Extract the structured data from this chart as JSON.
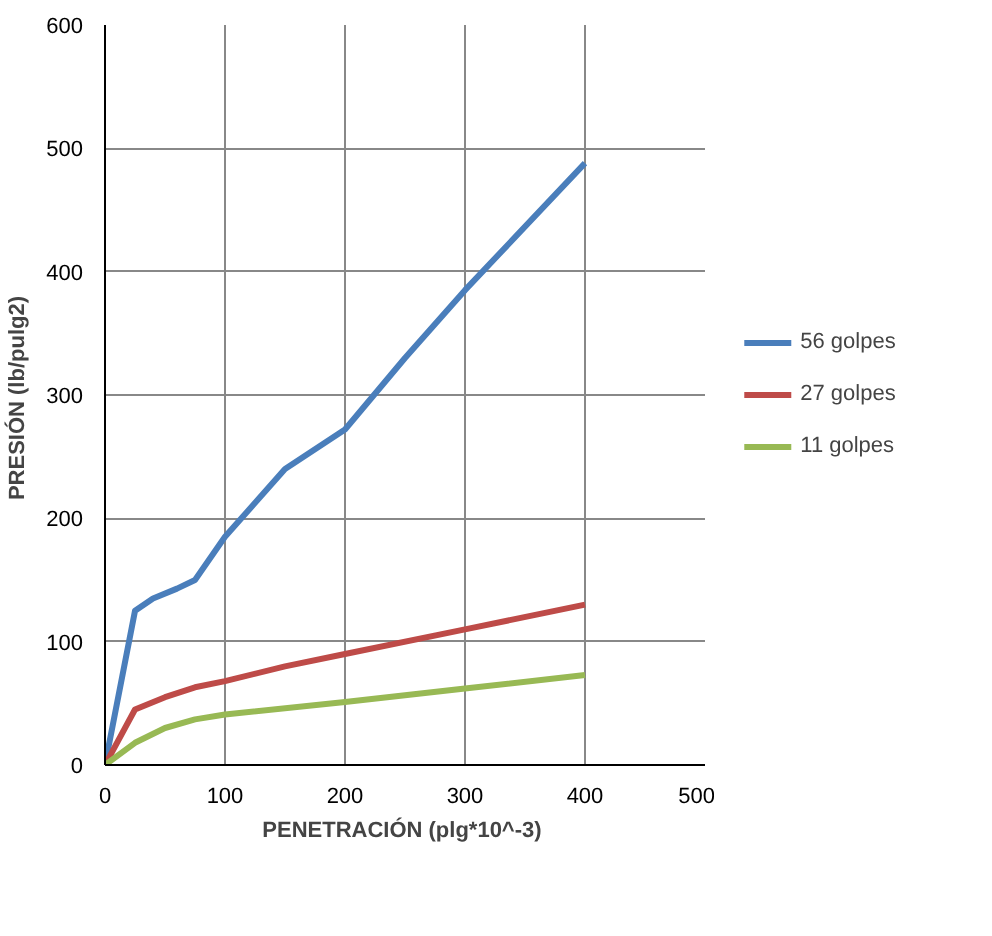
{
  "chart_data": {
    "type": "line",
    "xlabel": "PENETRACIÓN  (plg*10^-3)",
    "ylabel": "PRESIÓN  (lb/pulg2)",
    "xlim": [
      0,
      500
    ],
    "ylim": [
      0,
      600
    ],
    "xticks": [
      0,
      100,
      200,
      300,
      400,
      500
    ],
    "yticks": [
      0,
      100,
      200,
      300,
      400,
      500,
      600
    ],
    "grid": true,
    "legend": "right",
    "marker": "none",
    "line_style": "solid",
    "series": [
      {
        "name": "56 golpes",
        "color": "#4a7ebb",
        "x": [
          0,
          25,
          40,
          60,
          75,
          100,
          150,
          200,
          250,
          300,
          400
        ],
        "values": [
          0,
          125,
          135,
          143,
          150,
          185,
          240,
          272,
          330,
          385,
          488
        ]
      },
      {
        "name": "27 golpes",
        "color": "#be4b48",
        "x": [
          0,
          25,
          50,
          75,
          100,
          150,
          200,
          300,
          400
        ],
        "values": [
          0,
          45,
          55,
          63,
          68,
          80,
          90,
          110,
          130
        ]
      },
      {
        "name": "11 golpes",
        "color": "#98b954",
        "x": [
          0,
          25,
          50,
          75,
          100,
          200,
          300,
          400
        ],
        "values": [
          0,
          18,
          30,
          37,
          41,
          51,
          62,
          73
        ]
      }
    ]
  }
}
